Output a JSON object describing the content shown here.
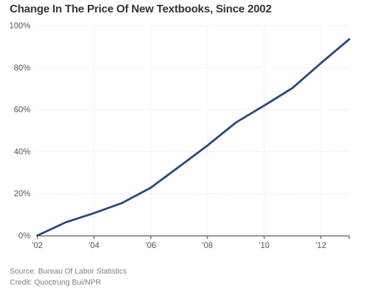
{
  "title": "Change In The Price Of New Textbooks, Since 2002",
  "source": "Source: Bureau Of Labor Statistics",
  "credit": "Credit: Quoctrung Bui/NPR",
  "chart_data": {
    "type": "line",
    "title": "Change In The Price Of New Textbooks, Since 2002",
    "xlabel": "",
    "ylabel": "",
    "x": [
      2002,
      2003,
      2004,
      2005,
      2006,
      2007,
      2008,
      2009,
      2010,
      2011,
      2012,
      2013
    ],
    "series": [
      {
        "values": [
          0,
          6.3,
          10.7,
          15.6,
          22.8,
          32.8,
          42.9,
          53.8,
          61.9,
          70.3,
          82.1,
          93.5
        ]
      }
    ],
    "xticks": [
      2002,
      2004,
      2006,
      2008,
      2010,
      2012
    ],
    "xtick_labels": [
      "'02",
      "'04",
      "'06",
      "'08",
      "'10",
      "'12"
    ],
    "xlim": [
      2002,
      2013
    ],
    "yticks": [
      0,
      20,
      40,
      60,
      80,
      100
    ],
    "ytick_labels": [
      "0%",
      "20%",
      "40%",
      "60%",
      "80%",
      "100%"
    ],
    "ylim": [
      0,
      100
    ],
    "grid": true,
    "line_color": "#2b4a7c",
    "grid_color": "#cccccc",
    "axis_color": "#333333",
    "label_color": "#555555"
  }
}
